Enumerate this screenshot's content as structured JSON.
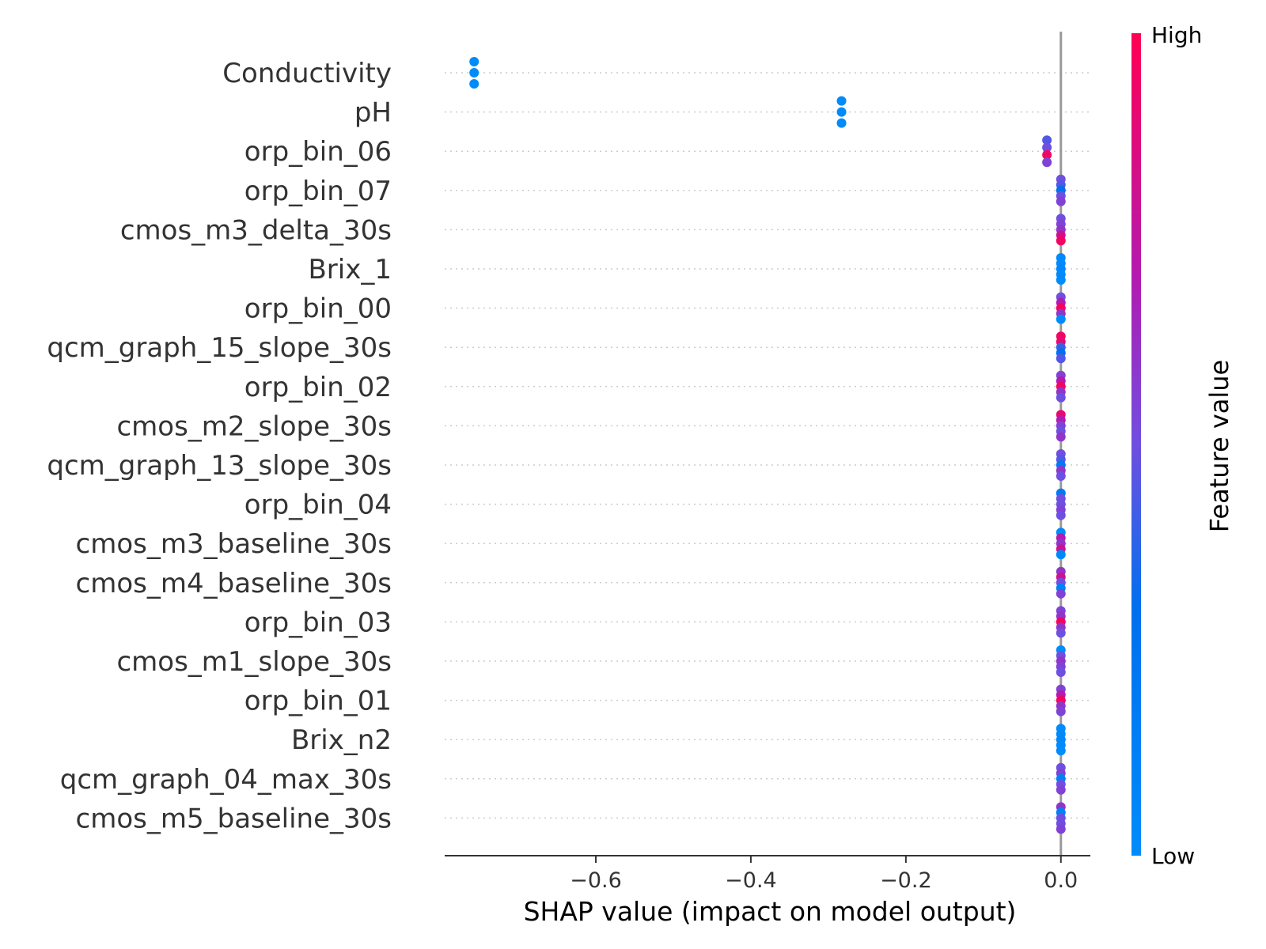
{
  "chart_data": {
    "type": "scatter",
    "subtype": "shap-beeswarm",
    "xlabel": "SHAP value (impact on model output)",
    "xlim": [
      -0.795,
      0.038
    ],
    "xticks": [
      -0.6,
      -0.4,
      -0.2,
      0.0
    ],
    "xtick_labels": [
      "−0.6",
      "−0.4",
      "−0.2",
      "0.0"
    ],
    "colorbar": {
      "label": "Feature value",
      "high_label": "High",
      "low_label": "Low",
      "low_color": "#008bfb",
      "high_color": "#ff0052"
    },
    "features": [
      {
        "name": "Conductivity",
        "points": [
          {
            "x": -0.757,
            "v": 0.0
          },
          {
            "x": -0.757,
            "v": 0.0
          },
          {
            "x": -0.757,
            "v": 0.0
          }
        ]
      },
      {
        "name": "pH",
        "points": [
          {
            "x": -0.283,
            "v": 0.0
          },
          {
            "x": -0.283,
            "v": 0.0
          },
          {
            "x": -0.283,
            "v": 0.0
          }
        ]
      },
      {
        "name": "orp_bin_06",
        "points": [
          {
            "x": -0.018,
            "v": 0.45
          },
          {
            "x": -0.018,
            "v": 0.5
          },
          {
            "x": -0.018,
            "v": 0.95
          },
          {
            "x": -0.018,
            "v": 0.55
          }
        ]
      },
      {
        "name": "orp_bin_07",
        "points": [
          {
            "x": 0.0,
            "v": 0.5
          },
          {
            "x": 0.0,
            "v": 0.45
          },
          {
            "x": 0.0,
            "v": 0.3
          },
          {
            "x": 0.0,
            "v": 0.5
          },
          {
            "x": 0.0,
            "v": 0.55
          }
        ]
      },
      {
        "name": "cmos_m3_delta_30s",
        "points": [
          {
            "x": 0.0,
            "v": 0.5
          },
          {
            "x": 0.0,
            "v": 0.55
          },
          {
            "x": 0.0,
            "v": 0.6
          },
          {
            "x": 0.0,
            "v": 0.8
          },
          {
            "x": 0.0,
            "v": 0.95
          }
        ]
      },
      {
        "name": "Brix_1",
        "points": [
          {
            "x": 0.0,
            "v": 0.0
          },
          {
            "x": 0.0,
            "v": 0.0
          },
          {
            "x": 0.0,
            "v": 0.05
          },
          {
            "x": 0.0,
            "v": 0.0
          },
          {
            "x": 0.0,
            "v": 0.0
          }
        ]
      },
      {
        "name": "orp_bin_00",
        "points": [
          {
            "x": 0.0,
            "v": 0.5
          },
          {
            "x": 0.0,
            "v": 0.7
          },
          {
            "x": 0.0,
            "v": 0.95
          },
          {
            "x": 0.0,
            "v": 0.6
          },
          {
            "x": 0.0,
            "v": 0.0
          }
        ]
      },
      {
        "name": "qcm_graph_15_slope_30s",
        "points": [
          {
            "x": 0.0,
            "v": 0.95
          },
          {
            "x": 0.0,
            "v": 0.9
          },
          {
            "x": 0.0,
            "v": 0.4
          },
          {
            "x": 0.0,
            "v": 0.3
          },
          {
            "x": 0.0,
            "v": 0.45
          }
        ]
      },
      {
        "name": "orp_bin_02",
        "points": [
          {
            "x": 0.0,
            "v": 0.55
          },
          {
            "x": 0.0,
            "v": 0.7
          },
          {
            "x": 0.0,
            "v": 0.95
          },
          {
            "x": 0.0,
            "v": 0.6
          },
          {
            "x": 0.0,
            "v": 0.5
          }
        ]
      },
      {
        "name": "cmos_m2_slope_30s",
        "points": [
          {
            "x": 0.0,
            "v": 0.9
          },
          {
            "x": 0.0,
            "v": 0.7
          },
          {
            "x": 0.0,
            "v": 0.55
          },
          {
            "x": 0.0,
            "v": 0.5
          },
          {
            "x": 0.0,
            "v": 0.6
          }
        ]
      },
      {
        "name": "qcm_graph_13_slope_30s",
        "points": [
          {
            "x": 0.0,
            "v": 0.5
          },
          {
            "x": 0.0,
            "v": 0.45
          },
          {
            "x": 0.0,
            "v": 0.2
          },
          {
            "x": 0.0,
            "v": 0.6
          },
          {
            "x": 0.0,
            "v": 0.5
          }
        ]
      },
      {
        "name": "orp_bin_04",
        "points": [
          {
            "x": 0.0,
            "v": 0.2
          },
          {
            "x": 0.0,
            "v": 0.5
          },
          {
            "x": 0.0,
            "v": 0.5
          },
          {
            "x": 0.0,
            "v": 0.55
          },
          {
            "x": 0.0,
            "v": 0.5
          }
        ]
      },
      {
        "name": "cmos_m3_baseline_30s",
        "points": [
          {
            "x": 0.0,
            "v": 0.0
          },
          {
            "x": 0.0,
            "v": 0.7
          },
          {
            "x": 0.0,
            "v": 0.6
          },
          {
            "x": 0.0,
            "v": 0.8
          },
          {
            "x": 0.0,
            "v": 0.05
          }
        ]
      },
      {
        "name": "cmos_m4_baseline_30s",
        "points": [
          {
            "x": 0.0,
            "v": 0.6
          },
          {
            "x": 0.0,
            "v": 0.8
          },
          {
            "x": 0.0,
            "v": 0.5
          },
          {
            "x": 0.0,
            "v": 0.1
          },
          {
            "x": 0.0,
            "v": 0.55
          }
        ]
      },
      {
        "name": "orp_bin_03",
        "points": [
          {
            "x": 0.0,
            "v": 0.55
          },
          {
            "x": 0.0,
            "v": 0.6
          },
          {
            "x": 0.0,
            "v": 0.95
          },
          {
            "x": 0.0,
            "v": 0.6
          },
          {
            "x": 0.0,
            "v": 0.5
          }
        ]
      },
      {
        "name": "cmos_m1_slope_30s",
        "points": [
          {
            "x": 0.0,
            "v": 0.0
          },
          {
            "x": 0.0,
            "v": 0.5
          },
          {
            "x": 0.0,
            "v": 0.6
          },
          {
            "x": 0.0,
            "v": 0.55
          },
          {
            "x": 0.0,
            "v": 0.5
          }
        ]
      },
      {
        "name": "orp_bin_01",
        "points": [
          {
            "x": 0.0,
            "v": 0.55
          },
          {
            "x": 0.0,
            "v": 0.7
          },
          {
            "x": 0.0,
            "v": 0.95
          },
          {
            "x": 0.0,
            "v": 0.6
          },
          {
            "x": 0.0,
            "v": 0.55
          }
        ]
      },
      {
        "name": "Brix_n2",
        "points": [
          {
            "x": 0.0,
            "v": 0.0
          },
          {
            "x": 0.0,
            "v": 0.0
          },
          {
            "x": 0.0,
            "v": 0.05
          },
          {
            "x": 0.0,
            "v": 0.0
          },
          {
            "x": 0.0,
            "v": 0.0
          }
        ]
      },
      {
        "name": "qcm_graph_04_max_30s",
        "points": [
          {
            "x": 0.0,
            "v": 0.5
          },
          {
            "x": 0.0,
            "v": 0.55
          },
          {
            "x": 0.0,
            "v": 0.1
          },
          {
            "x": 0.0,
            "v": 0.5
          },
          {
            "x": 0.0,
            "v": 0.55
          }
        ]
      },
      {
        "name": "cmos_m5_baseline_30s",
        "points": [
          {
            "x": 0.0,
            "v": 0.6
          },
          {
            "x": 0.0,
            "v": 0.1
          },
          {
            "x": 0.0,
            "v": 0.5
          },
          {
            "x": 0.0,
            "v": 0.5
          },
          {
            "x": 0.0,
            "v": 0.55
          }
        ]
      }
    ]
  }
}
